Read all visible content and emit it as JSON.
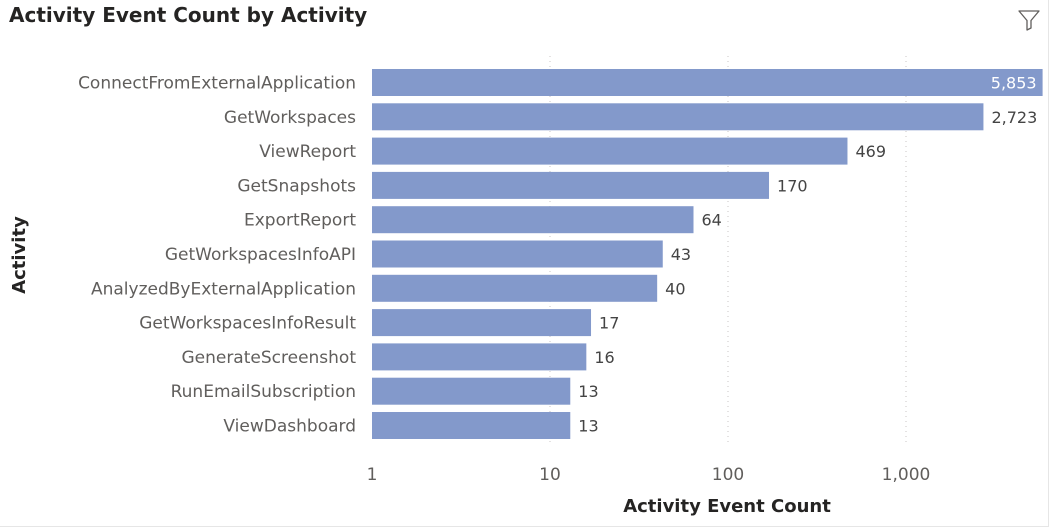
{
  "visual": {
    "title": "Activity Event Count by Activity",
    "filter_icon": "filter-icon"
  },
  "colors": {
    "bar": "#8399CB",
    "title": "#252423",
    "label": "#605e5c"
  },
  "chart_data": {
    "type": "bar",
    "orientation": "horizontal",
    "title": "Activity Event Count by Activity",
    "xlabel": "Activity Event Count",
    "ylabel": "Activity",
    "x_scale": "log",
    "xlim": [
      1,
      6200
    ],
    "x_ticks": [
      1,
      10,
      100,
      1000
    ],
    "x_tick_labels": [
      "1",
      "10",
      "100",
      "1,000"
    ],
    "grid": true,
    "legend": "none",
    "categories": [
      "ConnectFromExternalApplication",
      "GetWorkspaces",
      "ViewReport",
      "GetSnapshots",
      "ExportReport",
      "GetWorkspacesInfoAPI",
      "AnalyzedByExternalApplication",
      "GetWorkspacesInfoResult",
      "GenerateScreenshot",
      "RunEmailSubscription",
      "ViewDashboard"
    ],
    "values": [
      5853,
      2723,
      469,
      170,
      64,
      43,
      40,
      17,
      16,
      13,
      13
    ],
    "value_labels": [
      "5,853",
      "2,723",
      "469",
      "170",
      "64",
      "43",
      "40",
      "17",
      "16",
      "13",
      "13"
    ]
  }
}
